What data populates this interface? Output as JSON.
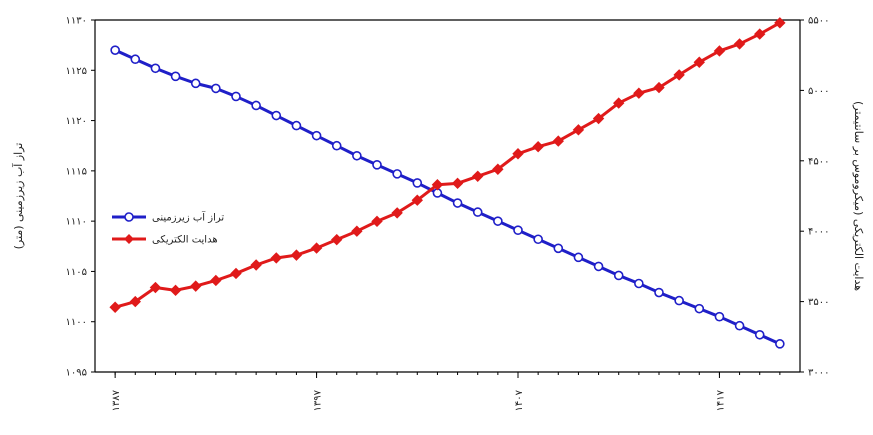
{
  "chart_data": {
    "type": "line",
    "x": [
      1387,
      1388,
      1389,
      1390,
      1391,
      1392,
      1393,
      1394,
      1395,
      1396,
      1397,
      1398,
      1399,
      1400,
      1401,
      1402,
      1403,
      1404,
      1405,
      1406,
      1407,
      1408,
      1409,
      1410,
      1411,
      1412,
      1413,
      1414,
      1415,
      1416,
      1417,
      1418,
      1419,
      1420
    ],
    "x_tick_labels": [
      {
        "value": 1387,
        "label": "۱۳۸۷"
      },
      {
        "value": 1397,
        "label": "۱۳۹۷"
      },
      {
        "value": 1407,
        "label": "۱۴۰۷"
      },
      {
        "value": 1417,
        "label": "۱۴۱۷"
      }
    ],
    "y_left": {
      "label": "تراز آب زیرزمینی (متر)",
      "range": [
        1095,
        1130
      ],
      "ticks": [
        {
          "value": 1095,
          "label": "۱۰۹۵"
        },
        {
          "value": 1100,
          "label": "۱۱۰۰"
        },
        {
          "value": 1105,
          "label": "۱۱۰۵"
        },
        {
          "value": 1110,
          "label": "۱۱۱۰"
        },
        {
          "value": 1115,
          "label": "۱۱۱۵"
        },
        {
          "value": 1120,
          "label": "۱۱۲۰"
        },
        {
          "value": 1125,
          "label": "۱۱۲۵"
        },
        {
          "value": 1130,
          "label": "۱۱۳۰"
        }
      ]
    },
    "y_right": {
      "label": "هدایت الکتریکی (میکروموس بر سانتیمتر)",
      "range": [
        3000,
        5500
      ],
      "ticks": [
        {
          "value": 3000,
          "label": "۳۰۰۰"
        },
        {
          "value": 3500,
          "label": "۳۵۰۰"
        },
        {
          "value": 4000,
          "label": "۴۰۰۰"
        },
        {
          "value": 4500,
          "label": "۴۵۰۰"
        },
        {
          "value": 5000,
          "label": "۵۰۰۰"
        },
        {
          "value": 5500,
          "label": "۵۵۰۰"
        }
      ]
    },
    "series": [
      {
        "name": "تراز آب زیرزمینی",
        "axis": "left",
        "color": "#1f1fc8",
        "marker": "circle",
        "values": [
          1127.0,
          1126.1,
          1125.2,
          1124.4,
          1123.7,
          1123.2,
          1122.4,
          1121.5,
          1120.5,
          1119.5,
          1118.5,
          1117.5,
          1116.5,
          1115.6,
          1114.7,
          1113.8,
          1112.8,
          1111.8,
          1110.9,
          1110.0,
          1109.1,
          1108.2,
          1107.3,
          1106.4,
          1105.5,
          1104.6,
          1103.8,
          1102.9,
          1102.1,
          1101.3,
          1100.5,
          1099.6,
          1098.7,
          1097.8
        ]
      },
      {
        "name": "هدایت الکتریکی",
        "axis": "right",
        "color": "#e01a1a",
        "marker": "diamond",
        "values": [
          3460,
          3500,
          3600,
          3580,
          3610,
          3650,
          3700,
          3760,
          3810,
          3830,
          3880,
          3940,
          4000,
          4070,
          4130,
          4220,
          4330,
          4340,
          4390,
          4440,
          4550,
          4600,
          4640,
          4720,
          4800,
          4910,
          4980,
          5020,
          5110,
          5200,
          5280,
          5330,
          5400,
          5480
        ]
      }
    ],
    "legend_position": "left-middle",
    "grid": false
  }
}
